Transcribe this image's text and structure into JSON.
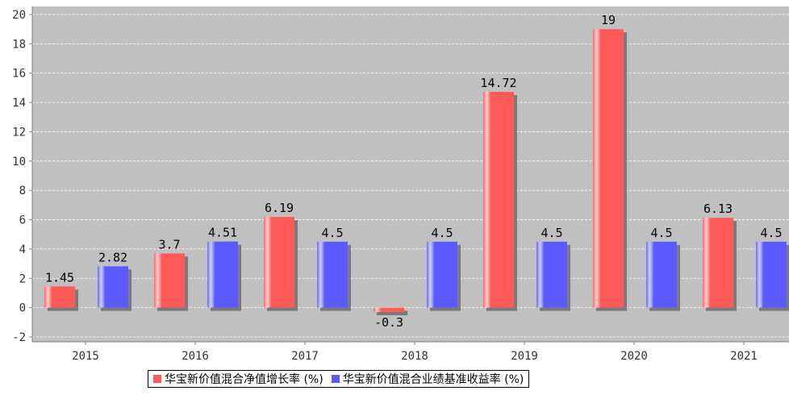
{
  "chart_data": {
    "type": "bar",
    "categories": [
      "2015",
      "2016",
      "2017",
      "2018",
      "2019",
      "2020",
      "2021"
    ],
    "series": [
      {
        "name": "华宝新价值混合净值增长率 (%)",
        "values": [
          1.45,
          3.7,
          6.19,
          -0.3,
          14.72,
          19,
          6.13
        ],
        "labels": [
          "1.45",
          "3.7",
          "6.19",
          "-0.3",
          "14.72",
          "19",
          "6.13"
        ],
        "color": "#ff5a5a"
      },
      {
        "name": "华宝新价值混合业绩基准收益率 (%)",
        "values": [
          2.82,
          4.51,
          4.5,
          4.5,
          4.5,
          4.5,
          4.5
        ],
        "labels": [
          "2.82",
          "4.51",
          "4.5",
          "4.5",
          "4.5",
          "4.5",
          "4.5"
        ],
        "color": "#5a5aff"
      }
    ],
    "ylim": [
      -2,
      20
    ],
    "yticks": [
      -2,
      0,
      2,
      4,
      6,
      8,
      10,
      12,
      14,
      16,
      18,
      20
    ],
    "grid": true,
    "legend_position": "bottom"
  }
}
